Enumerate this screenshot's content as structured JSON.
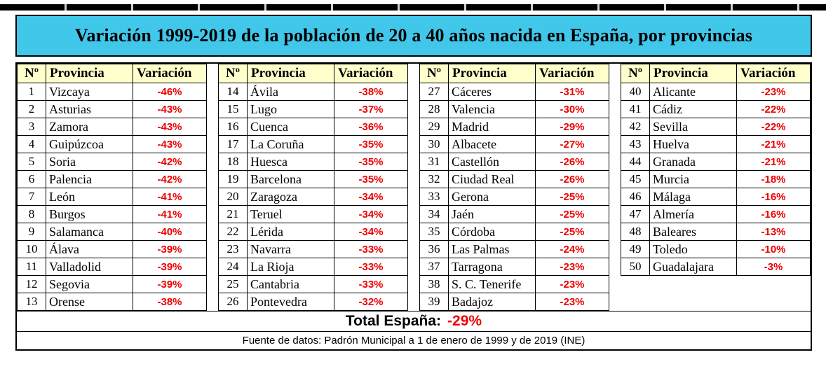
{
  "title": "Variación 1999-2019 de la población de 20 a 40 años nacida en España, por provincias",
  "colors": {
    "title_bg": "#41C7EA",
    "header_bg": "#FFFFCC",
    "value_red": "#EE0000"
  },
  "layout": {
    "group_sizes": [
      13,
      13,
      13,
      11
    ]
  },
  "chart_data": {
    "type": "table",
    "title": "Variación 1999-2019 de la población de 20 a 40 años nacida en España, por provincias",
    "columns": [
      "Nº",
      "Provincia",
      "Variación"
    ],
    "rows": [
      [
        "1",
        "Vizcaya",
        "-46%"
      ],
      [
        "2",
        "Asturias",
        "-43%"
      ],
      [
        "3",
        "Zamora",
        "-43%"
      ],
      [
        "4",
        "Guipúzcoa",
        "-43%"
      ],
      [
        "5",
        "Soria",
        "-42%"
      ],
      [
        "6",
        "Palencia",
        "-42%"
      ],
      [
        "7",
        "León",
        "-41%"
      ],
      [
        "8",
        "Burgos",
        "-41%"
      ],
      [
        "9",
        "Salamanca",
        "-40%"
      ],
      [
        "10",
        "Álava",
        "-39%"
      ],
      [
        "11",
        "Valladolid",
        "-39%"
      ],
      [
        "12",
        "Segovia",
        "-39%"
      ],
      [
        "13",
        "Orense",
        "-38%"
      ],
      [
        "14",
        "Ávila",
        "-38%"
      ],
      [
        "15",
        "Lugo",
        "-37%"
      ],
      [
        "16",
        "Cuenca",
        "-36%"
      ],
      [
        "17",
        "La Coruña",
        "-35%"
      ],
      [
        "18",
        "Huesca",
        "-35%"
      ],
      [
        "19",
        "Barcelona",
        "-35%"
      ],
      [
        "20",
        "Zaragoza",
        "-34%"
      ],
      [
        "21",
        "Teruel",
        "-34%"
      ],
      [
        "22",
        "Lérida",
        "-34%"
      ],
      [
        "23",
        "Navarra",
        "-33%"
      ],
      [
        "24",
        "La Rioja",
        "-33%"
      ],
      [
        "25",
        "Cantabria",
        "-33%"
      ],
      [
        "26",
        "Pontevedra",
        "-32%"
      ],
      [
        "27",
        "Cáceres",
        "-31%"
      ],
      [
        "28",
        "Valencia",
        "-30%"
      ],
      [
        "29",
        "Madrid",
        "-29%"
      ],
      [
        "30",
        "Albacete",
        "-27%"
      ],
      [
        "31",
        "Castellón",
        "-26%"
      ],
      [
        "32",
        "Ciudad Real",
        "-26%"
      ],
      [
        "33",
        "Gerona",
        "-25%"
      ],
      [
        "34",
        "Jaén",
        "-25%"
      ],
      [
        "35",
        "Córdoba",
        "-25%"
      ],
      [
        "36",
        "Las Palmas",
        "-24%"
      ],
      [
        "37",
        "Tarragona",
        "-23%"
      ],
      [
        "38",
        "S. C. Tenerife",
        "-23%"
      ],
      [
        "39",
        "Badajoz",
        "-23%"
      ],
      [
        "40",
        "Alicante",
        "-23%"
      ],
      [
        "41",
        "Cádiz",
        "-22%"
      ],
      [
        "42",
        "Sevilla",
        "-22%"
      ],
      [
        "43",
        "Huelva",
        "-21%"
      ],
      [
        "44",
        "Granada",
        "-21%"
      ],
      [
        "45",
        "Murcia",
        "-18%"
      ],
      [
        "46",
        "Málaga",
        "-16%"
      ],
      [
        "47",
        "Almería",
        "-16%"
      ],
      [
        "48",
        "Baleares",
        "-13%"
      ],
      [
        "49",
        "Toledo",
        "-10%"
      ],
      [
        "50",
        "Guadalajara",
        "-3%"
      ]
    ],
    "total": {
      "label": "Total España:",
      "value": "-29%"
    },
    "source": "Fuente de datos: Padrón Municipal a 1 de enero de 1999 y de 2019 (INE)"
  }
}
